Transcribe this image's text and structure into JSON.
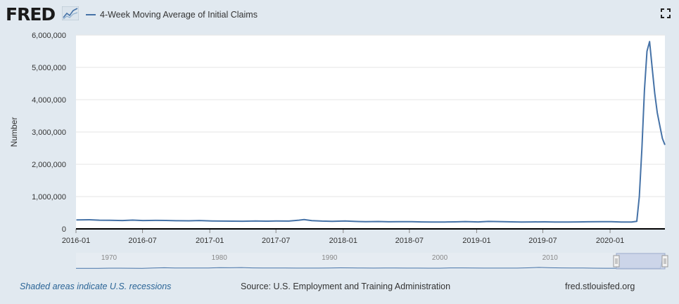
{
  "header": {
    "logo_text": "FRED",
    "logo_icon": "fred-graph-logo-icon",
    "legend_label": "4-Week Moving Average of Initial Claims",
    "fullscreen_icon": "fullscreen-icon"
  },
  "footer": {
    "recession_note": "Shaded areas indicate U.S. recessions",
    "source": "Source: U.S. Employment and Training Administration",
    "site": "fred.stlouisfed.org"
  },
  "colors": {
    "series": "#4572a7",
    "background": "#e1e9f0",
    "plot_background": "#ffffff",
    "navigator_mask": "#c6d0e6"
  },
  "chart_data": {
    "type": "line",
    "title": "",
    "xlabel": "",
    "ylabel": "Number",
    "ylim": [
      0,
      6000000
    ],
    "xlim": [
      "2016-01-01",
      "2020-05-30"
    ],
    "grid": true,
    "legend": "top-left",
    "y_ticks": [
      {
        "value": 0,
        "label": "0"
      },
      {
        "value": 1000000,
        "label": "1,000,000"
      },
      {
        "value": 2000000,
        "label": "2,000,000"
      },
      {
        "value": 3000000,
        "label": "3,000,000"
      },
      {
        "value": 4000000,
        "label": "4,000,000"
      },
      {
        "value": 5000000,
        "label": "5,000,000"
      },
      {
        "value": 6000000,
        "label": "6,000,000"
      }
    ],
    "x_ticks": [
      {
        "value": "2016-01-01",
        "label": "2016-01"
      },
      {
        "value": "2016-07-01",
        "label": "2016-07"
      },
      {
        "value": "2017-01-01",
        "label": "2017-01"
      },
      {
        "value": "2017-07-01",
        "label": "2017-07"
      },
      {
        "value": "2018-01-01",
        "label": "2018-01"
      },
      {
        "value": "2018-07-01",
        "label": "2018-07"
      },
      {
        "value": "2019-01-01",
        "label": "2019-01"
      },
      {
        "value": "2019-07-01",
        "label": "2019-07"
      },
      {
        "value": "2020-01-01",
        "label": "2020-01"
      }
    ],
    "series": [
      {
        "name": "4-Week Moving Average of Initial Claims",
        "x": [
          "2016-01-02",
          "2016-02-06",
          "2016-03-05",
          "2016-04-02",
          "2016-05-07",
          "2016-06-04",
          "2016-07-02",
          "2016-08-06",
          "2016-09-03",
          "2016-10-01",
          "2016-11-05",
          "2016-12-03",
          "2017-01-07",
          "2017-02-04",
          "2017-03-04",
          "2017-04-01",
          "2017-05-06",
          "2017-06-03",
          "2017-07-01",
          "2017-08-05",
          "2017-09-02",
          "2017-09-16",
          "2017-10-07",
          "2017-11-04",
          "2017-12-02",
          "2018-01-06",
          "2018-02-03",
          "2018-03-03",
          "2018-04-07",
          "2018-05-05",
          "2018-06-02",
          "2018-07-07",
          "2018-08-04",
          "2018-09-01",
          "2018-10-06",
          "2018-11-03",
          "2018-12-01",
          "2019-01-05",
          "2019-02-02",
          "2019-03-02",
          "2019-04-06",
          "2019-05-04",
          "2019-06-01",
          "2019-07-06",
          "2019-08-03",
          "2019-09-07",
          "2019-10-05",
          "2019-11-02",
          "2019-12-07",
          "2020-01-04",
          "2020-02-01",
          "2020-02-29",
          "2020-03-14",
          "2020-03-21",
          "2020-03-28",
          "2020-04-04",
          "2020-04-11",
          "2020-04-18",
          "2020-04-25",
          "2020-05-02",
          "2020-05-09",
          "2020-05-16",
          "2020-05-23",
          "2020-05-30"
        ],
        "y": [
          277000,
          283000,
          270000,
          266000,
          258000,
          272000,
          259000,
          262000,
          261000,
          252000,
          250000,
          258000,
          246000,
          242000,
          239000,
          236000,
          243000,
          240000,
          243000,
          241000,
          270000,
          290000,
          257000,
          241000,
          235000,
          243000,
          230000,
          222000,
          228000,
          220000,
          224000,
          222000,
          215000,
          212000,
          213000,
          218000,
          225000,
          216000,
          230000,
          225000,
          218000,
          214000,
          216000,
          217000,
          214000,
          213000,
          215000,
          220000,
          224000,
          223000,
          212000,
          211000,
          232000,
          1000000,
          2500000,
          4300000,
          5500000,
          5800000,
          5000000,
          4200000,
          3600000,
          3200000,
          2800000,
          2600000
        ]
      }
    ]
  },
  "navigator": {
    "labels": [
      "1970",
      "1980",
      "1990",
      "2000",
      "2010"
    ],
    "label_years": [
      1970,
      1980,
      1990,
      2000,
      2010
    ],
    "start_year": 1967,
    "end_year": 2020.42,
    "selection_start": 2016.0,
    "selection_end": 2020.42,
    "series_years": [
      1967,
      1968,
      1969,
      1970,
      1971,
      1972,
      1973,
      1974,
      1975,
      1976,
      1977,
      1978,
      1979,
      1980,
      1981,
      1982,
      1983,
      1984,
      1985,
      1986,
      1987,
      1988,
      1989,
      1990,
      1991,
      1992,
      1993,
      1994,
      1995,
      1996,
      1997,
      1998,
      1999,
      2000,
      2001,
      2002,
      2003,
      2004,
      2005,
      2006,
      2007,
      2008,
      2009,
      2010,
      2011,
      2012,
      2013,
      2014,
      2015,
      2016,
      2017,
      2018,
      2019,
      2020.0,
      2020.2,
      2020.3,
      2020.42
    ],
    "series_values": [
      200000,
      190000,
      195000,
      295000,
      290000,
      255000,
      240000,
      350000,
      470000,
      380000,
      360000,
      340000,
      380000,
      490000,
      450000,
      560000,
      420000,
      350000,
      385000,
      375000,
      325000,
      310000,
      330000,
      380000,
      440000,
      410000,
      340000,
      330000,
      350000,
      340000,
      320000,
      320000,
      290000,
      300000,
      420000,
      400000,
      380000,
      330000,
      320000,
      310000,
      320000,
      440000,
      600000,
      450000,
      410000,
      370000,
      340000,
      290000,
      270000,
      265000,
      245000,
      222000,
      218000,
      215000,
      4200000,
      5800000,
      2600000
    ]
  }
}
